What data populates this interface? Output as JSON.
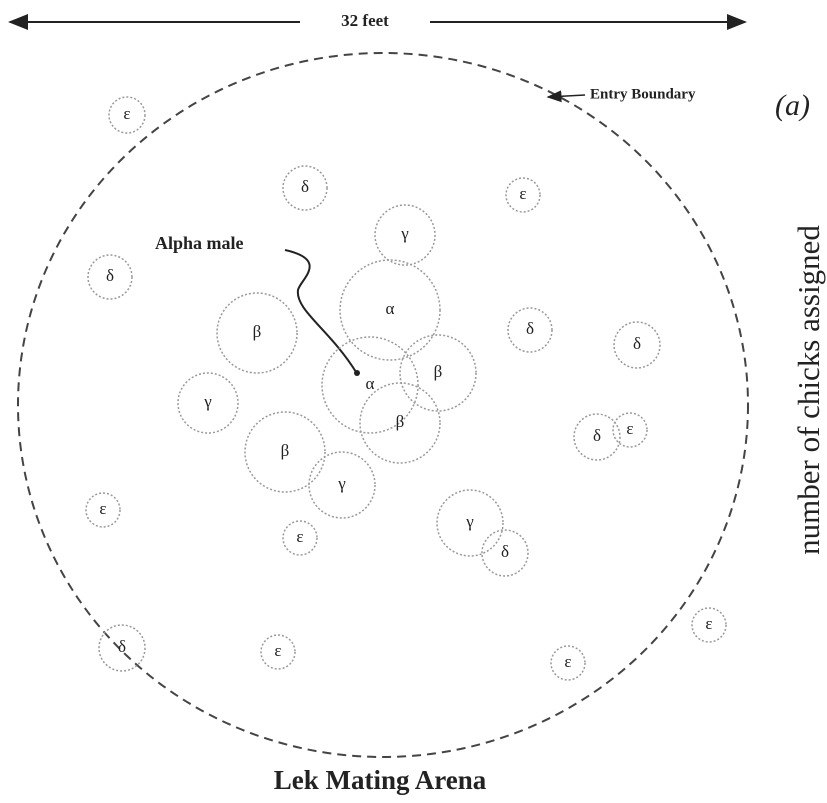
{
  "header": {
    "scale": "32 feet",
    "boundary": "Entry Boundary",
    "panel": "(a)",
    "side_label": "number of chicks assigned",
    "pointer": "Alpha male",
    "title": "Lek Mating Arena"
  },
  "nodes": [
    {
      "label": "ε"
    },
    {
      "label": "δ"
    },
    {
      "label": "ε"
    },
    {
      "label": "γ"
    },
    {
      "label": "δ"
    },
    {
      "label": "α"
    },
    {
      "label": "β"
    },
    {
      "label": "δ"
    },
    {
      "label": "δ"
    },
    {
      "label": "α"
    },
    {
      "label": "β"
    },
    {
      "label": "γ"
    },
    {
      "label": "β"
    },
    {
      "label": "β"
    },
    {
      "label": "δ"
    },
    {
      "label": "ε"
    },
    {
      "label": "γ"
    },
    {
      "label": "ε"
    },
    {
      "label": "ε"
    },
    {
      "label": "γ"
    },
    {
      "label": "δ"
    },
    {
      "label": "δ"
    },
    {
      "label": "ε"
    },
    {
      "label": "ε"
    },
    {
      "label": "ε"
    }
  ]
}
